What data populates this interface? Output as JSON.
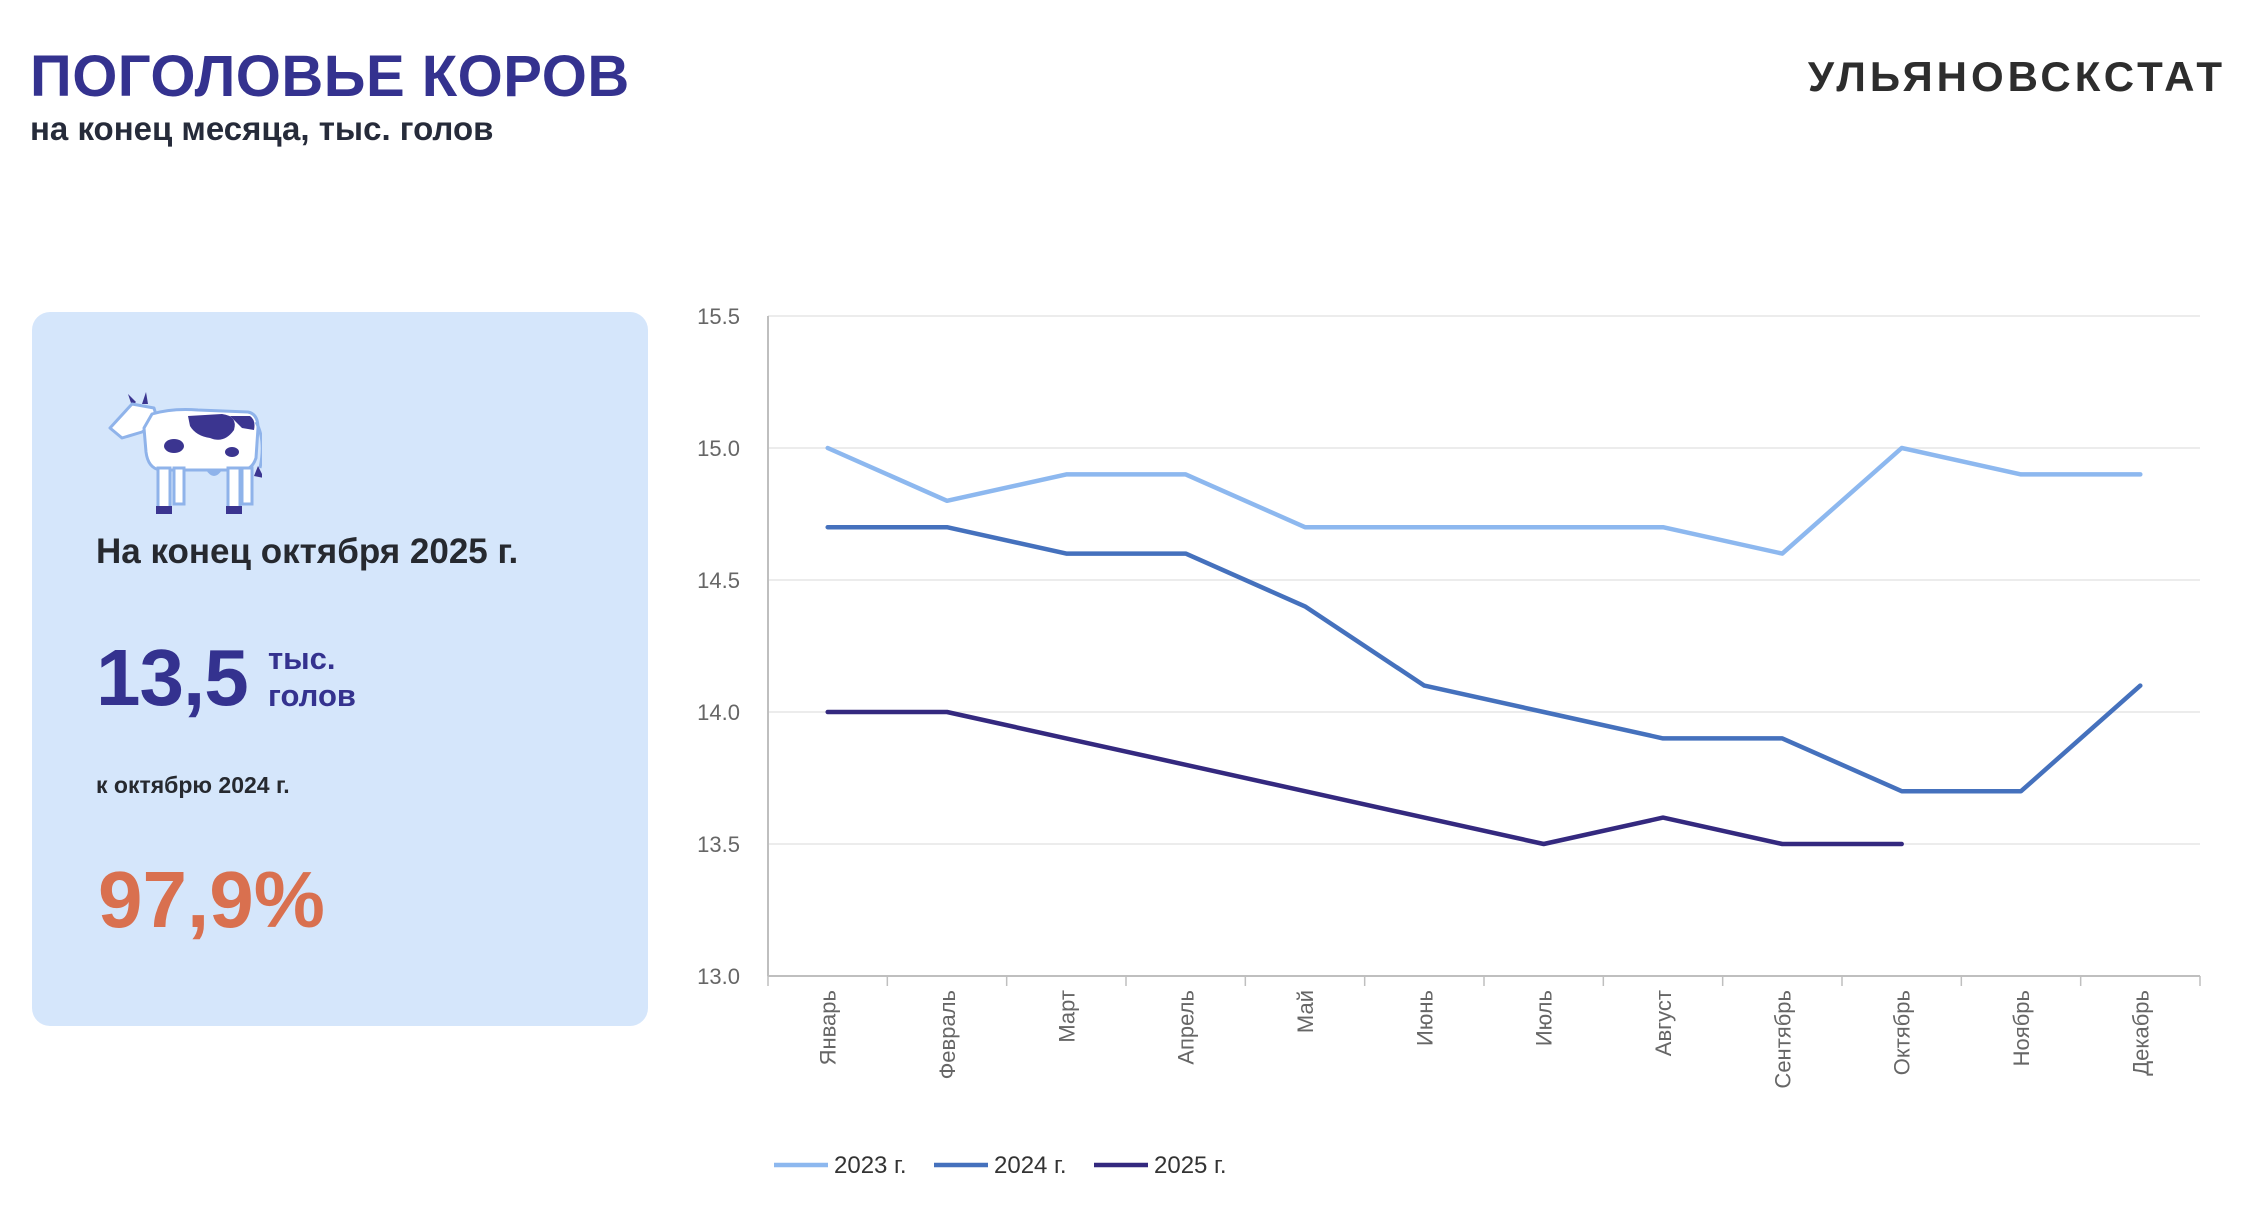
{
  "header": {
    "title": "ПОГОЛОВЬЕ КОРОВ",
    "subtitle": "на конец месяца, тыс. голов",
    "brand": "УЛЬЯНОВСКСТАТ"
  },
  "card": {
    "icon": "cow-icon",
    "heading": "На конец октября 2025 г.",
    "value": "13,5",
    "unit": "тыс. голов",
    "compare_label": "к октябрю 2024 г.",
    "percent": "97,9%",
    "colors": {
      "background": "#d5e6fb",
      "value": "#34328f",
      "percent": "#d9704f"
    }
  },
  "chart_data": {
    "type": "line",
    "x": [
      "Январь",
      "Февраль",
      "Март",
      "Апрель",
      "Май",
      "Июнь",
      "Июль",
      "Август",
      "Сентябрь",
      "Октябрь",
      "Ноябрь",
      "Декабрь"
    ],
    "y_ticks": [
      "13.0",
      "13.5",
      "14.0",
      "14.5",
      "15.0",
      "15.5"
    ],
    "ylim": [
      13.0,
      15.5
    ],
    "grid": true,
    "legend": "bottom",
    "series": [
      {
        "name": "2023 г.",
        "color": "#8db8ef",
        "values": [
          15.0,
          14.8,
          14.9,
          14.9,
          14.7,
          14.7,
          14.7,
          14.7,
          14.6,
          15.0,
          14.9,
          14.9
        ]
      },
      {
        "name": "2024 г.",
        "color": "#4571bd",
        "values": [
          14.7,
          14.7,
          14.6,
          14.6,
          14.4,
          14.1,
          14.0,
          13.9,
          13.9,
          13.7,
          13.7,
          14.1
        ]
      },
      {
        "name": "2025 г.",
        "color": "#34297f",
        "values": [
          14.0,
          14.0,
          13.9,
          13.8,
          13.7,
          13.6,
          13.5,
          13.6,
          13.5,
          13.5,
          null,
          null
        ]
      }
    ]
  }
}
